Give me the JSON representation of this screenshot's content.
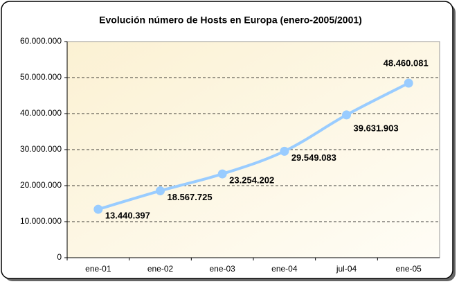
{
  "chart_data": {
    "type": "line",
    "title": "Evolución número de Hosts en Europa (enero-2005/2001)",
    "categories": [
      "ene-01",
      "ene-02",
      "ene-03",
      "ene-04",
      "jul-04",
      "ene-05"
    ],
    "values": [
      13440397,
      18567725,
      23254202,
      29549083,
      39631903,
      48460081
    ],
    "value_labels": [
      "13.440.397",
      "18.567.725",
      "23.254.202",
      "29.549.083",
      "39.631.903",
      "48.460.081"
    ],
    "color": "#99ccff",
    "ylim": [
      0,
      60000000
    ],
    "yticks": [
      0,
      {
        "value": 10000000,
        "label": "10.000.000"
      },
      {
        "value": 20000000,
        "label": "20.000.000"
      },
      {
        "value": 30000000,
        "label": "30.000.000"
      },
      {
        "value": 40000000,
        "label": "40.000.000"
      },
      {
        "value": 50000000,
        "label": "50.000.000"
      },
      {
        "value": 60000000,
        "label": "60.000.000"
      }
    ],
    "grid": true
  }
}
